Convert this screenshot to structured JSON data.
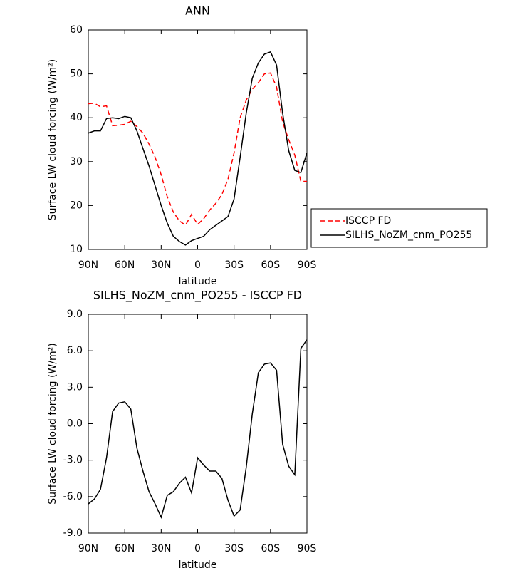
{
  "chart_data": [
    {
      "type": "line",
      "title": "ANN",
      "x_label": "latitude",
      "y_label": "Surface LW cloud forcing (W/m²)",
      "x": [
        90,
        85,
        80,
        75,
        70,
        65,
        60,
        55,
        50,
        45,
        40,
        35,
        30,
        25,
        20,
        15,
        10,
        5,
        0,
        -5,
        -10,
        -15,
        -20,
        -25,
        -30,
        -35,
        -40,
        -45,
        -50,
        -55,
        -60,
        -65,
        -70,
        -75,
        -80,
        -85,
        -90
      ],
      "xlim": [
        90,
        -90
      ],
      "xticks": [
        {
          "value": 90,
          "label": "90N"
        },
        {
          "value": 60,
          "label": "60N"
        },
        {
          "value": 30,
          "label": "30N"
        },
        0,
        {
          "value": -30,
          "label": "30S"
        },
        {
          "value": -60,
          "label": "60S"
        },
        {
          "value": -90,
          "label": "90S"
        }
      ],
      "ylim": [
        10,
        60
      ],
      "yticks": [
        10,
        20,
        30,
        40,
        50,
        60
      ],
      "legend": "right",
      "series": [
        {
          "name": "ISCCP FD",
          "color": "#ff0000",
          "style": "dashed",
          "values": [
            43.2,
            43.3,
            42.5,
            42.7,
            38.2,
            38.3,
            38.5,
            39.2,
            38,
            36.5,
            34,
            31,
            27,
            22,
            18.5,
            16.5,
            15.5,
            18,
            15.7,
            17,
            19,
            20.5,
            22.5,
            26,
            32,
            40,
            44,
            46.5,
            48,
            50,
            50.2,
            47,
            39,
            35,
            31.5,
            25.5,
            25.5
          ]
        },
        {
          "name": "SILHS_NoZM_cnm_PO255",
          "color": "#000000",
          "style": "solid",
          "values": [
            36.5,
            37,
            37,
            39.8,
            40,
            39.8,
            40.3,
            40,
            37,
            33,
            29,
            24.5,
            20,
            16,
            13,
            11.8,
            11,
            12,
            12.5,
            13,
            14.5,
            15.5,
            16.5,
            17.5,
            21.5,
            31,
            41,
            49,
            52.5,
            54.5,
            55,
            52,
            41,
            32.5,
            28,
            27.5,
            32
          ]
        }
      ]
    },
    {
      "type": "line",
      "title": "SILHS_NoZM_cnm_PO255 - ISCCP FD",
      "x_label": "latitude",
      "y_label": "Surface LW cloud forcing (W/m²)",
      "x": [
        90,
        85,
        80,
        75,
        70,
        65,
        60,
        55,
        50,
        45,
        40,
        35,
        30,
        25,
        20,
        15,
        10,
        5,
        0,
        -5,
        -10,
        -15,
        -20,
        -25,
        -30,
        -35,
        -40,
        -45,
        -50,
        -55,
        -60,
        -65,
        -70,
        -75,
        -80,
        -85,
        -90
      ],
      "xlim": [
        90,
        -90
      ],
      "xticks": [
        {
          "value": 90,
          "label": "90N"
        },
        {
          "value": 60,
          "label": "60N"
        },
        {
          "value": 30,
          "label": "30N"
        },
        0,
        {
          "value": -30,
          "label": "30S"
        },
        {
          "value": -60,
          "label": "60S"
        },
        {
          "value": -90,
          "label": "90S"
        }
      ],
      "ylim": [
        -9,
        9
      ],
      "yticks": [
        {
          "value": -9,
          "label": "-9.0"
        },
        {
          "value": -6,
          "label": "-6.0"
        },
        {
          "value": -3,
          "label": "-3.0"
        },
        {
          "value": 0,
          "label": "0.0"
        },
        {
          "value": 3,
          "label": "3.0"
        },
        {
          "value": 6,
          "label": "6.0"
        },
        {
          "value": 9,
          "label": "9.0"
        }
      ],
      "series": [
        {
          "color": "#000000",
          "style": "solid",
          "values": [
            -6.6,
            -6.2,
            -5.4,
            -2.8,
            1.0,
            1.7,
            1.8,
            1.2,
            -2.0,
            -3.9,
            -5.6,
            -6.6,
            -7.7,
            -5.9,
            -5.6,
            -4.9,
            -4.4,
            -5.7,
            -2.8,
            -3.4,
            -3.9,
            -3.9,
            -4.5,
            -6.3,
            -7.6,
            -7.1,
            -3.6,
            0.8,
            4.2,
            4.9,
            5.0,
            4.4,
            -1.7,
            -3.5,
            -4.2,
            6.2,
            6.9
          ]
        }
      ]
    }
  ]
}
